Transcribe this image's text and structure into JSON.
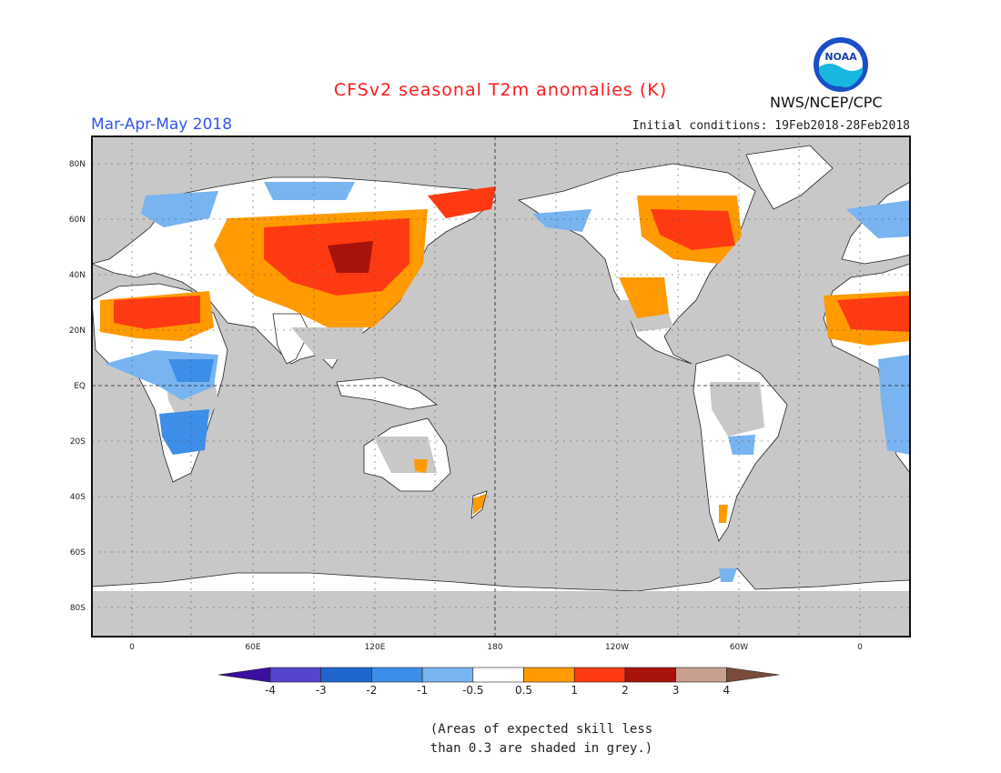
{
  "header": {
    "title": "CFSv2 seasonal T2m anomalies (K)",
    "period": "Mar-Apr-May 2018",
    "initial_conditions": "Initial conditions: 19Feb2018-28Feb2018",
    "agency": "NWS/NCEP/CPC",
    "logo_text": "NOAA"
  },
  "map": {
    "lat_labels": [
      "80N",
      "60N",
      "40N",
      "20N",
      "EQ",
      "20S",
      "40S",
      "60S",
      "80S"
    ],
    "lon_labels": [
      "0",
      "60E",
      "120E",
      "180",
      "120W",
      "60W",
      "0"
    ],
    "ocean_color": "#c8c8c8",
    "land_color": "#ffffff"
  },
  "colorbar": {
    "tick_labels": [
      "-4",
      "-3",
      "-2",
      "-1",
      "-0.5",
      "0.5",
      "1",
      "2",
      "3",
      "4"
    ],
    "colors": [
      "#3b0fa0",
      "#5544cc",
      "#1f66cc",
      "#3d8ee8",
      "#78b4f0",
      "#ffffff",
      "#ff9a00",
      "#ff3a12",
      "#a8120c",
      "#c9a090",
      "#7a4a3a"
    ]
  },
  "footnote": {
    "line1": "(Areas of expected skill less",
    "line2": "than 0.3 are shaded in grey.)"
  }
}
